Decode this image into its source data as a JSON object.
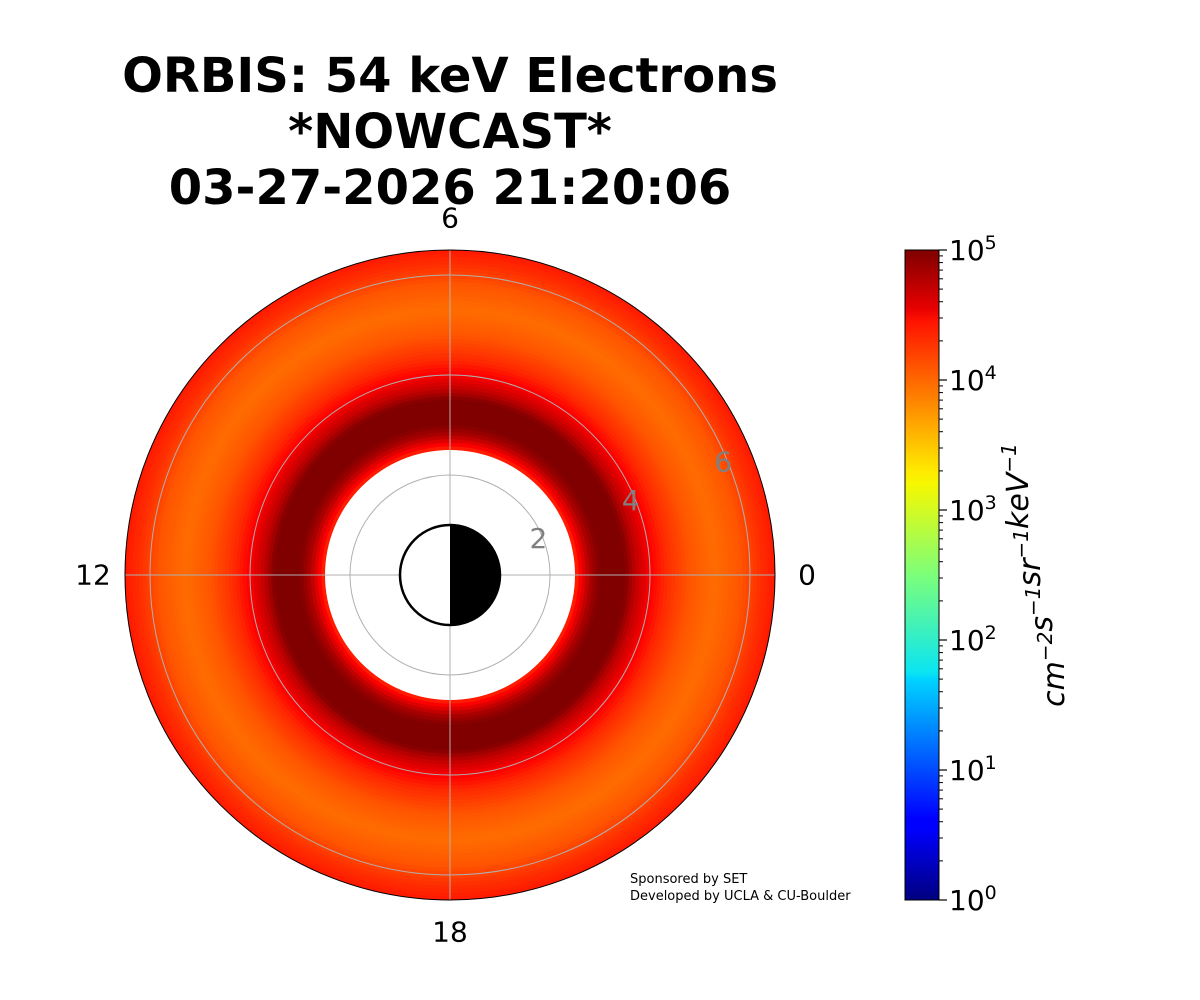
{
  "title_lines": [
    "ORBIS: 54 keV Electrons",
    "*NOWCAST*",
    "03-27-2026 21:20:06"
  ],
  "credits": [
    "Sponsored by SET",
    "Developed by UCLA & CU-Boulder"
  ],
  "chart_data": {
    "type": "polar-heatmap",
    "quantity": "54 keV electron differential flux",
    "angular_axis": {
      "unit": "MLT (hours)",
      "tick_labels": [
        {
          "label": "0",
          "mlt": 0
        },
        {
          "label": "6",
          "mlt": 6
        },
        {
          "label": "12",
          "mlt": 12
        },
        {
          "label": "18",
          "mlt": 18
        }
      ]
    },
    "radial_axis": {
      "unit": "L",
      "range": [
        0,
        6.5
      ],
      "ticks": [
        2,
        4,
        6
      ],
      "tick_labels": [
        "2",
        "4",
        "6"
      ],
      "grid": true
    },
    "earth": {
      "radius": 1,
      "dayside_white_mlt_center": 12,
      "nightside_black_mlt_center": 0
    },
    "data_mask": {
      "empty_inside_L": 2.5
    },
    "flux_profile": [
      {
        "L": 2.5,
        "flux": 15000
      },
      {
        "L": 2.8,
        "flux": 60000
      },
      {
        "L": 3.0,
        "flux": 100000
      },
      {
        "L": 3.5,
        "flux": 100000
      },
      {
        "L": 3.7,
        "flux": 50000
      },
      {
        "L": 4.0,
        "flux": 25000
      },
      {
        "L": 4.3,
        "flux": 15000
      },
      {
        "L": 4.8,
        "flux": 9000
      },
      {
        "L": 5.3,
        "flux": 7000
      },
      {
        "L": 5.8,
        "flux": 9000
      },
      {
        "L": 6.2,
        "flux": 14000
      },
      {
        "L": 6.5,
        "flux": 18000
      }
    ],
    "colorbar": {
      "colormap": "jet",
      "scale": "log",
      "range": [
        1,
        100000
      ],
      "tick_labels": [
        {
          "base": "10",
          "exp": "0",
          "value": 1
        },
        {
          "base": "10",
          "exp": "1",
          "value": 10
        },
        {
          "base": "10",
          "exp": "2",
          "value": 100
        },
        {
          "base": "10",
          "exp": "3",
          "value": 1000
        },
        {
          "base": "10",
          "exp": "4",
          "value": 10000
        },
        {
          "base": "10",
          "exp": "5",
          "value": 100000
        }
      ],
      "unit_label": [
        {
          "base": "cm",
          "exp": "−2"
        },
        {
          "base": "s",
          "exp": "−1"
        },
        {
          "base": "sr",
          "exp": "−1"
        },
        {
          "base": "keV",
          "exp": "−1"
        }
      ]
    },
    "colors": {
      "grid": "#b0b0b0",
      "radial_tick_text": "#808080",
      "mask": "#ffffff",
      "earth_night": "#000000",
      "earth_day": "#ffffff"
    }
  }
}
